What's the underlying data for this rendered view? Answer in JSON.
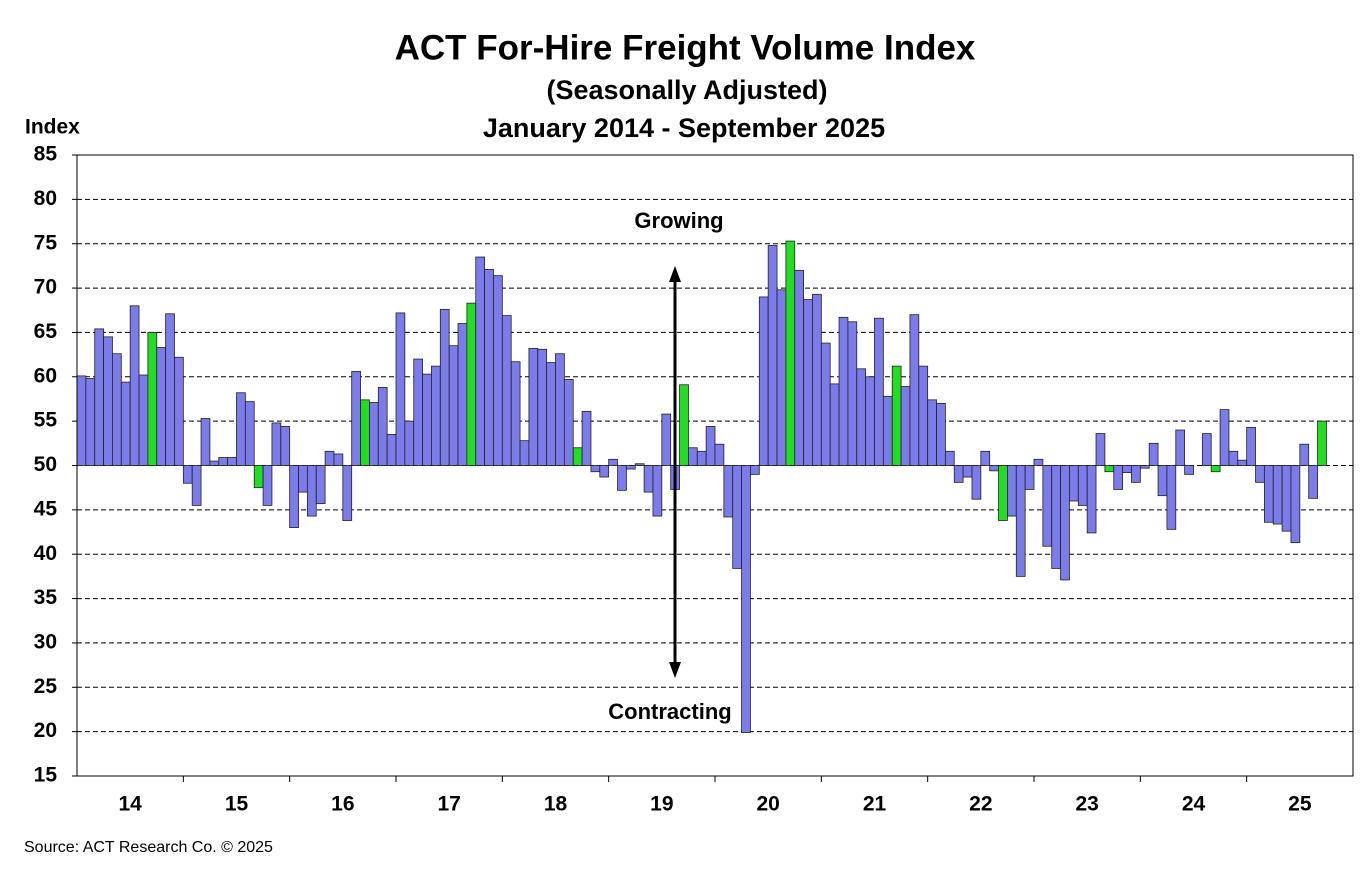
{
  "chart_data": {
    "type": "bar",
    "title": "ACT For-Hire Freight Volume Index",
    "subtitle": "(Seasonally Adjusted)",
    "date_range": "January 2014 - September 2025",
    "y_label": "Index",
    "source": "Source:  ACT Research Co. © 2025",
    "annotations": {
      "up": "Growing",
      "down": "Contracting"
    },
    "baseline": 50,
    "ylim": [
      15,
      85
    ],
    "yticks": [
      15,
      20,
      25,
      30,
      35,
      40,
      45,
      50,
      55,
      60,
      65,
      70,
      75,
      80,
      85
    ],
    "grid": true,
    "categories": [
      null,
      null,
      null,
      null,
      null,
      "14",
      null,
      null,
      null,
      null,
      null,
      null,
      null,
      null,
      null,
      null,
      null,
      "15",
      null,
      null,
      null,
      null,
      null,
      null,
      null,
      null,
      null,
      null,
      null,
      "16",
      null,
      null,
      null,
      null,
      null,
      null,
      null,
      null,
      null,
      null,
      null,
      "17",
      null,
      null,
      null,
      null,
      null,
      null,
      null,
      null,
      null,
      null,
      null,
      "18",
      null,
      null,
      null,
      null,
      null,
      null,
      null,
      null,
      null,
      null,
      null,
      "19",
      null,
      null,
      null,
      null,
      null,
      null,
      null,
      null,
      null,
      null,
      null,
      "20",
      null,
      null,
      null,
      null,
      null,
      null,
      null,
      null,
      null,
      null,
      null,
      "21",
      null,
      null,
      null,
      null,
      null,
      null,
      null,
      null,
      null,
      null,
      null,
      "22",
      null,
      null,
      null,
      null,
      null,
      null,
      null,
      null,
      null,
      null,
      null,
      "23",
      null,
      null,
      null,
      null,
      null,
      null,
      null,
      null,
      null,
      null,
      null,
      "24",
      null,
      null,
      null,
      null,
      null,
      null,
      null,
      null,
      null,
      null,
      null,
      "25",
      null,
      null,
      null
    ],
    "values": [
      60.1,
      59.8,
      65.4,
      64.5,
      62.6,
      59.4,
      68.0,
      60.2,
      65.0,
      63.3,
      67.1,
      62.2,
      48.0,
      45.5,
      55.3,
      50.5,
      50.9,
      50.9,
      58.2,
      57.2,
      47.5,
      45.5,
      54.8,
      54.4,
      43.0,
      47.0,
      44.3,
      45.7,
      51.6,
      51.3,
      43.8,
      60.6,
      57.4,
      57.1,
      58.8,
      53.5,
      67.2,
      55.0,
      62.0,
      60.3,
      61.2,
      67.6,
      63.5,
      66.0,
      68.3,
      73.5,
      72.1,
      71.4,
      66.9,
      61.7,
      52.8,
      63.2,
      63.1,
      61.6,
      62.6,
      59.7,
      52.0,
      56.1,
      49.3,
      48.7,
      50.7,
      47.2,
      49.6,
      50.2,
      47.0,
      44.3,
      55.8,
      47.3,
      59.1,
      52.0,
      51.6,
      54.4,
      52.4,
      44.2,
      38.4,
      19.9,
      49.0,
      69.0,
      74.8,
      69.8,
      75.3,
      72.0,
      68.7,
      69.3,
      63.8,
      59.2,
      66.7,
      66.2,
      60.9,
      60.0,
      66.6,
      57.8,
      61.2,
      58.9,
      67.0,
      61.2,
      57.4,
      57.0,
      51.6,
      48.1,
      48.7,
      46.2,
      51.6,
      49.4,
      43.8,
      44.3,
      37.5,
      47.3,
      50.7,
      40.9,
      38.4,
      37.1,
      46.0,
      45.5,
      42.4,
      53.6,
      49.3,
      47.3,
      49.2,
      48.1,
      49.7,
      52.5,
      46.6,
      42.8,
      54.0,
      49.0,
      50.0,
      53.6,
      49.3,
      56.3,
      51.6,
      50.6,
      54.3,
      48.1,
      43.6,
      43.4,
      42.6,
      41.3,
      52.4,
      46.3,
      55.0
    ],
    "color": "#7b7bea",
    "highlight_color": "#22dd22",
    "highlight_month": 9
  }
}
